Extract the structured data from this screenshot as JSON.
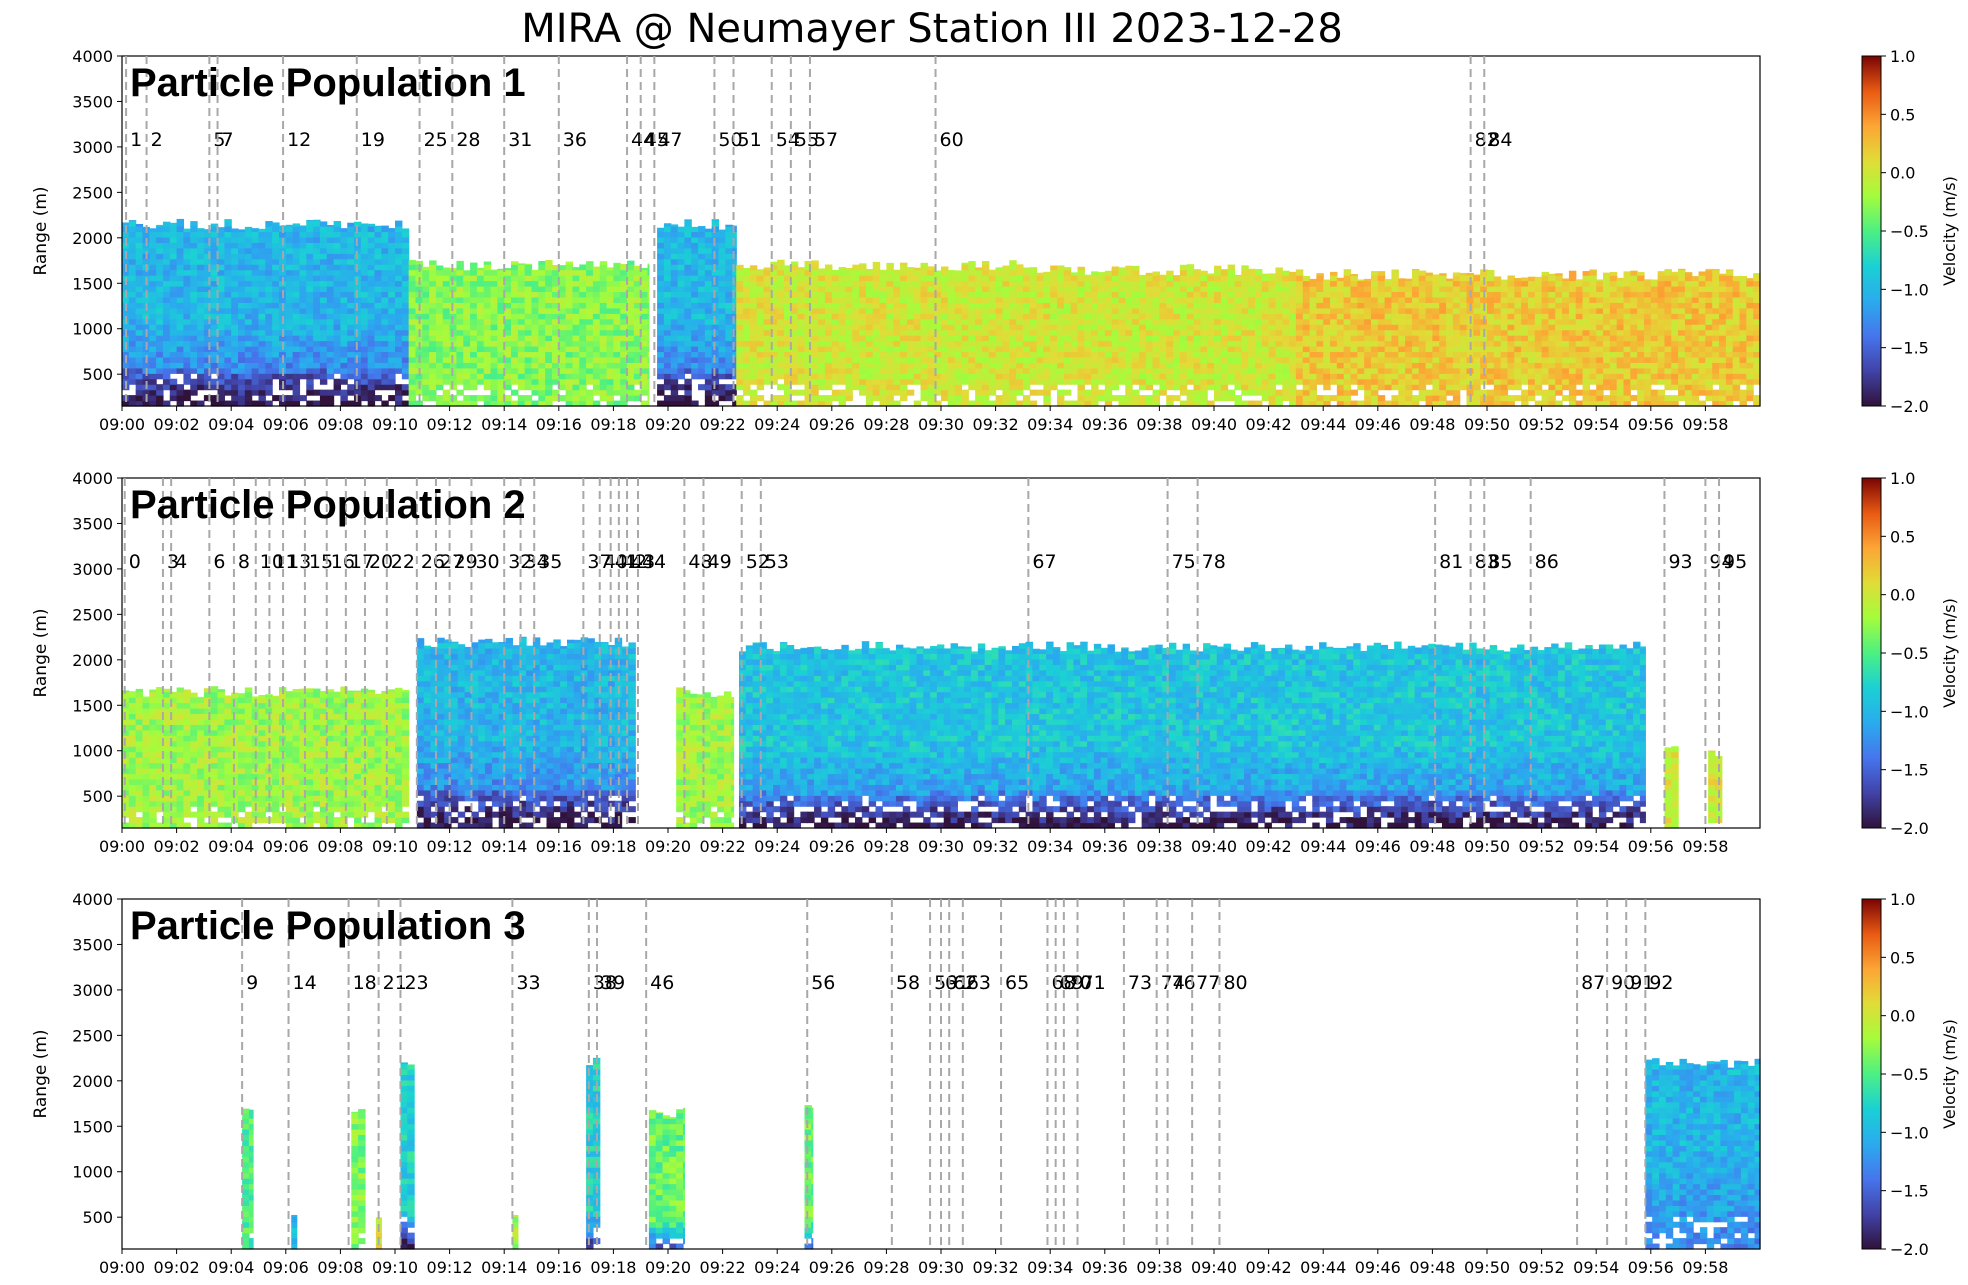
{
  "figure": {
    "title": "MIRA @ Neumayer Station III 2023-12-28"
  },
  "chart_data": [
    {
      "type": "heatmap",
      "label": "Particle Population 1",
      "ylabel": "Range (m)",
      "xlabel": "",
      "xlim": [
        "09:00",
        "10:00"
      ],
      "ylim": [
        150,
        4000
      ],
      "yticks": [
        500,
        1000,
        1500,
        2000,
        2500,
        3000,
        3500,
        4000
      ],
      "xticks": [
        "09:00",
        "09:02",
        "09:04",
        "09:06",
        "09:08",
        "09:10",
        "09:12",
        "09:14",
        "09:16",
        "09:18",
        "09:20",
        "09:22",
        "09:24",
        "09:26",
        "09:28",
        "09:30",
        "09:32",
        "09:34",
        "09:36",
        "09:38",
        "09:40",
        "09:42",
        "09:44",
        "09:46",
        "09:48",
        "09:50",
        "09:52",
        "09:54",
        "09:56",
        "09:58"
      ],
      "colorbar": {
        "label": "Velocity (m/s)",
        "range": [
          -2.0,
          1.0
        ],
        "ticks": [
          "1.0",
          "0.5",
          "0.0",
          "−0.5",
          "−1.0",
          "−1.5",
          "−2.0"
        ]
      },
      "events": [
        {
          "id": "1",
          "t": 0.15
        },
        {
          "id": "2",
          "t": 0.9
        },
        {
          "id": "5",
          "t": 3.2
        },
        {
          "id": "7",
          "t": 3.5
        },
        {
          "id": "12",
          "t": 5.9
        },
        {
          "id": "19",
          "t": 8.6
        },
        {
          "id": "25",
          "t": 10.9
        },
        {
          "id": "28",
          "t": 12.1
        },
        {
          "id": "31",
          "t": 14.0
        },
        {
          "id": "36",
          "t": 16.0
        },
        {
          "id": "44",
          "t": 18.5
        },
        {
          "id": "45",
          "t": 19.0
        },
        {
          "id": "47",
          "t": 19.5
        },
        {
          "id": "50",
          "t": 21.7
        },
        {
          "id": "51",
          "t": 22.4
        },
        {
          "id": "54",
          "t": 23.8
        },
        {
          "id": "55",
          "t": 24.5
        },
        {
          "id": "57",
          "t": 25.2
        },
        {
          "id": "60",
          "t": 29.8
        },
        {
          "id": "82",
          "t": 49.4
        },
        {
          "id": "84",
          "t": 49.9
        }
      ],
      "regions": [
        {
          "start": 0.0,
          "end": 10.5,
          "top": 2150,
          "dominant_velocity": -1.0,
          "core_velocity": -1.5,
          "base_velocity": -2.0
        },
        {
          "start": 10.5,
          "end": 19.3,
          "top": 1700,
          "dominant_velocity": -0.3
        },
        {
          "start": 19.6,
          "end": 22.5,
          "top": 2150,
          "dominant_velocity": -1.0,
          "core_velocity": -1.5,
          "base_velocity": -2.0
        },
        {
          "start": 22.5,
          "end": 33.0,
          "top": 1700,
          "dominant_velocity": 0.0
        },
        {
          "start": 33.0,
          "end": 43.0,
          "top": 1650,
          "dominant_velocity": 0.0
        },
        {
          "start": 43.0,
          "end": 60.0,
          "top": 1600,
          "dominant_velocity": 0.2
        }
      ]
    },
    {
      "type": "heatmap",
      "label": "Particle Population 2",
      "ylabel": "Range (m)",
      "xlabel": "",
      "xlim": [
        "09:00",
        "10:00"
      ],
      "ylim": [
        150,
        4000
      ],
      "yticks": [
        500,
        1000,
        1500,
        2000,
        2500,
        3000,
        3500,
        4000
      ],
      "xticks": [
        "09:00",
        "09:02",
        "09:04",
        "09:06",
        "09:08",
        "09:10",
        "09:12",
        "09:14",
        "09:16",
        "09:18",
        "09:20",
        "09:22",
        "09:24",
        "09:26",
        "09:28",
        "09:30",
        "09:32",
        "09:34",
        "09:36",
        "09:38",
        "09:40",
        "09:42",
        "09:44",
        "09:46",
        "09:48",
        "09:50",
        "09:52",
        "09:54",
        "09:56",
        "09:58"
      ],
      "colorbar": {
        "label": "Velocity (m/s)",
        "range": [
          -2.0,
          1.0
        ],
        "ticks": [
          "1.0",
          "0.5",
          "0.0",
          "−0.5",
          "−1.0",
          "−1.5",
          "−2.0"
        ]
      },
      "events": [
        {
          "id": "0",
          "t": 0.1
        },
        {
          "id": "3",
          "t": 1.5
        },
        {
          "id": "4",
          "t": 1.8
        },
        {
          "id": "6",
          "t": 3.2
        },
        {
          "id": "8",
          "t": 4.1
        },
        {
          "id": "10",
          "t": 4.9
        },
        {
          "id": "11",
          "t": 5.4
        },
        {
          "id": "13",
          "t": 5.9
        },
        {
          "id": "15",
          "t": 6.7
        },
        {
          "id": "16",
          "t": 7.5
        },
        {
          "id": "17",
          "t": 8.2
        },
        {
          "id": "20",
          "t": 8.9
        },
        {
          "id": "22",
          "t": 9.7
        },
        {
          "id": "26",
          "t": 10.8
        },
        {
          "id": "27",
          "t": 11.5
        },
        {
          "id": "29",
          "t": 12.0
        },
        {
          "id": "30",
          "t": 12.8
        },
        {
          "id": "32",
          "t": 14.0
        },
        {
          "id": "34",
          "t": 14.6
        },
        {
          "id": "35",
          "t": 15.1
        },
        {
          "id": "37",
          "t": 16.9
        },
        {
          "id": "40",
          "t": 17.5
        },
        {
          "id": "41",
          "t": 17.9
        },
        {
          "id": "42",
          "t": 18.2
        },
        {
          "id": "43",
          "t": 18.5
        },
        {
          "id": "44",
          "t": 18.9
        },
        {
          "id": "48",
          "t": 20.6
        },
        {
          "id": "49",
          "t": 21.3
        },
        {
          "id": "52",
          "t": 22.7
        },
        {
          "id": "53",
          "t": 23.4
        },
        {
          "id": "67",
          "t": 33.2
        },
        {
          "id": "75",
          "t": 38.3
        },
        {
          "id": "78",
          "t": 39.4
        },
        {
          "id": "81",
          "t": 48.1
        },
        {
          "id": "83",
          "t": 49.4
        },
        {
          "id": "85",
          "t": 49.9
        },
        {
          "id": "86",
          "t": 51.6
        },
        {
          "id": "93",
          "t": 56.5
        },
        {
          "id": "94",
          "t": 58.0
        },
        {
          "id": "95",
          "t": 58.5
        }
      ],
      "regions": [
        {
          "start": 0.0,
          "end": 10.5,
          "top": 1650,
          "dominant_velocity": -0.2
        },
        {
          "start": 10.8,
          "end": 18.8,
          "top": 2200,
          "dominant_velocity": -1.0,
          "core_velocity": -1.5,
          "base_velocity": -2.0
        },
        {
          "start": 20.3,
          "end": 22.4,
          "top": 1650,
          "dominant_velocity": -0.2
        },
        {
          "start": 22.6,
          "end": 55.8,
          "top": 2150,
          "dominant_velocity": -0.9,
          "core_velocity": -1.3,
          "base_velocity": -2.0
        },
        {
          "start": 56.5,
          "end": 57.0,
          "top": 1000,
          "dominant_velocity": 0.0
        },
        {
          "start": 58.1,
          "end": 58.6,
          "top": 950,
          "dominant_velocity": 0.0
        }
      ]
    },
    {
      "type": "heatmap",
      "label": "Particle Population 3",
      "ylabel": "Range (m)",
      "xlabel": "",
      "xlim": [
        "09:00",
        "10:00"
      ],
      "ylim": [
        150,
        4000
      ],
      "yticks": [
        500,
        1000,
        1500,
        2000,
        2500,
        3000,
        3500,
        4000
      ],
      "xticks": [
        "09:00",
        "09:02",
        "09:04",
        "09:06",
        "09:08",
        "09:10",
        "09:12",
        "09:14",
        "09:16",
        "09:18",
        "09:20",
        "09:22",
        "09:24",
        "09:26",
        "09:28",
        "09:30",
        "09:32",
        "09:34",
        "09:36",
        "09:38",
        "09:40",
        "09:42",
        "09:44",
        "09:46",
        "09:48",
        "09:50",
        "09:52",
        "09:54",
        "09:56",
        "09:58"
      ],
      "colorbar": {
        "label": "Velocity (m/s)",
        "range": [
          -2.0,
          1.0
        ],
        "ticks": [
          "1.0",
          "0.5",
          "0.0",
          "−0.5",
          "−1.0",
          "−1.5",
          "−2.0"
        ]
      },
      "events": [
        {
          "id": "9",
          "t": 4.4
        },
        {
          "id": "14",
          "t": 6.1
        },
        {
          "id": "18",
          "t": 8.3
        },
        {
          "id": "21",
          "t": 9.4
        },
        {
          "id": "23",
          "t": 10.2
        },
        {
          "id": "33",
          "t": 14.3
        },
        {
          "id": "38",
          "t": 17.1
        },
        {
          "id": "39",
          "t": 17.4
        },
        {
          "id": "46",
          "t": 19.2
        },
        {
          "id": "56",
          "t": 25.1
        },
        {
          "id": "58",
          "t": 28.2
        },
        {
          "id": "59",
          "t": 29.6
        },
        {
          "id": "61",
          "t": 30.0
        },
        {
          "id": "62",
          "t": 30.3
        },
        {
          "id": "63",
          "t": 30.8
        },
        {
          "id": "65",
          "t": 32.2
        },
        {
          "id": "68",
          "t": 33.9
        },
        {
          "id": "69",
          "t": 34.2
        },
        {
          "id": "70",
          "t": 34.5
        },
        {
          "id": "71",
          "t": 35.0
        },
        {
          "id": "73",
          "t": 36.7
        },
        {
          "id": "74",
          "t": 37.9
        },
        {
          "id": "76",
          "t": 38.3
        },
        {
          "id": "77",
          "t": 39.2
        },
        {
          "id": "80",
          "t": 40.2
        },
        {
          "id": "87",
          "t": 53.3
        },
        {
          "id": "90",
          "t": 54.4
        },
        {
          "id": "91",
          "t": 55.1
        },
        {
          "id": "92",
          "t": 55.8
        }
      ],
      "regions": [
        {
          "start": 4.4,
          "end": 4.8,
          "top": 1650,
          "dominant_velocity": -0.5
        },
        {
          "start": 6.2,
          "end": 6.4,
          "top": 550,
          "dominant_velocity": -1.0
        },
        {
          "start": 8.4,
          "end": 8.9,
          "top": 1650,
          "dominant_velocity": -0.3
        },
        {
          "start": 9.3,
          "end": 9.5,
          "top": 500,
          "dominant_velocity": 0.0
        },
        {
          "start": 10.2,
          "end": 10.7,
          "top": 2200,
          "dominant_velocity": -0.8,
          "base_velocity": -2.0
        },
        {
          "start": 14.3,
          "end": 14.5,
          "top": 500,
          "dominant_velocity": -0.2
        },
        {
          "start": 17.0,
          "end": 17.5,
          "top": 2200,
          "dominant_velocity": -0.8,
          "base_velocity": -1.8
        },
        {
          "start": 19.3,
          "end": 20.6,
          "top": 1650,
          "dominant_velocity": -0.4,
          "base_velocity": -1.5
        },
        {
          "start": 25.0,
          "end": 25.3,
          "top": 1750,
          "dominant_velocity": -0.4,
          "base_velocity": -1.5
        },
        {
          "start": 55.8,
          "end": 60.0,
          "top": 2200,
          "dominant_velocity": -1.0,
          "core_velocity": -1.3
        }
      ]
    }
  ]
}
